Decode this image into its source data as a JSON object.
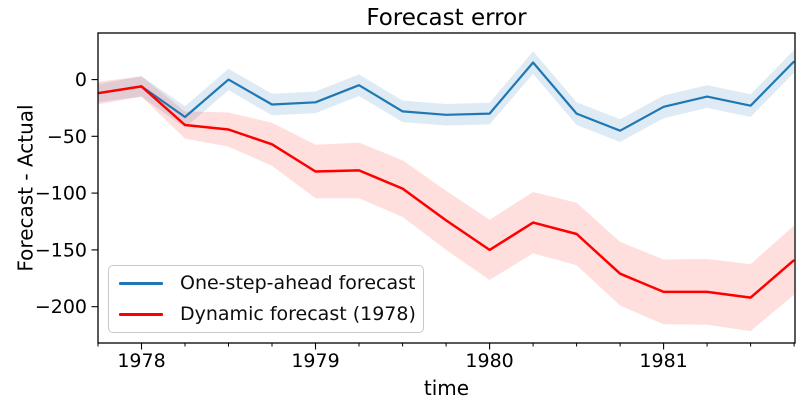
{
  "chart_data": {
    "type": "line",
    "title": "Forecast error",
    "xlabel": "time",
    "ylabel": "Forecast - Actual",
    "xlim": [
      1977.75,
      1981.755
    ],
    "ylim": [
      -232,
      41
    ],
    "grid": false,
    "legend_position": "lower left",
    "x_major_ticks": [
      {
        "value": 1978,
        "label": "1978"
      },
      {
        "value": 1979,
        "label": "1979"
      },
      {
        "value": 1980,
        "label": "1980"
      },
      {
        "value": 1981,
        "label": "1981"
      }
    ],
    "x_minor_tick_step": 0.25,
    "y_major_ticks": [
      {
        "value": 0,
        "label": "0"
      },
      {
        "value": -50,
        "label": "−50"
      },
      {
        "value": -100,
        "label": "−100"
      },
      {
        "value": -150,
        "label": "−150"
      },
      {
        "value": -200,
        "label": "−200"
      }
    ],
    "x": [
      1977.75,
      1978.0,
      1978.25,
      1978.5,
      1978.75,
      1979.0,
      1979.25,
      1979.5,
      1979.75,
      1980.0,
      1980.25,
      1980.5,
      1980.75,
      1981.0,
      1981.25,
      1981.5,
      1981.75
    ],
    "series": [
      {
        "name": "One-step-ahead forecast",
        "color": "#1f77b4",
        "band_opacity": 0.15,
        "values": [
          -12,
          -6,
          -33,
          0,
          -22,
          -20,
          -5,
          -28,
          -31,
          -30,
          15,
          -30,
          -45,
          -24,
          -15,
          -23,
          16
        ],
        "band_halfwidth": [
          8,
          9,
          9.5,
          9.5,
          9.5,
          9.5,
          9.5,
          9.5,
          9.5,
          9.5,
          10,
          10,
          10,
          10,
          10,
          10,
          10
        ]
      },
      {
        "name": "Dynamic forecast (1978)",
        "color": "#ff0000",
        "band_opacity": 0.13,
        "values": [
          -12,
          -6,
          -40,
          -44,
          -57,
          -81,
          -80,
          -96,
          -124,
          -150,
          -126,
          -136,
          -171,
          -187,
          -187,
          -192,
          -159
        ],
        "band_halfwidth": [
          10,
          9,
          12,
          15,
          19,
          23.5,
          24.5,
          25,
          26,
          26.5,
          27,
          27.5,
          28,
          28.5,
          29,
          29.5,
          30.5
        ]
      }
    ]
  }
}
